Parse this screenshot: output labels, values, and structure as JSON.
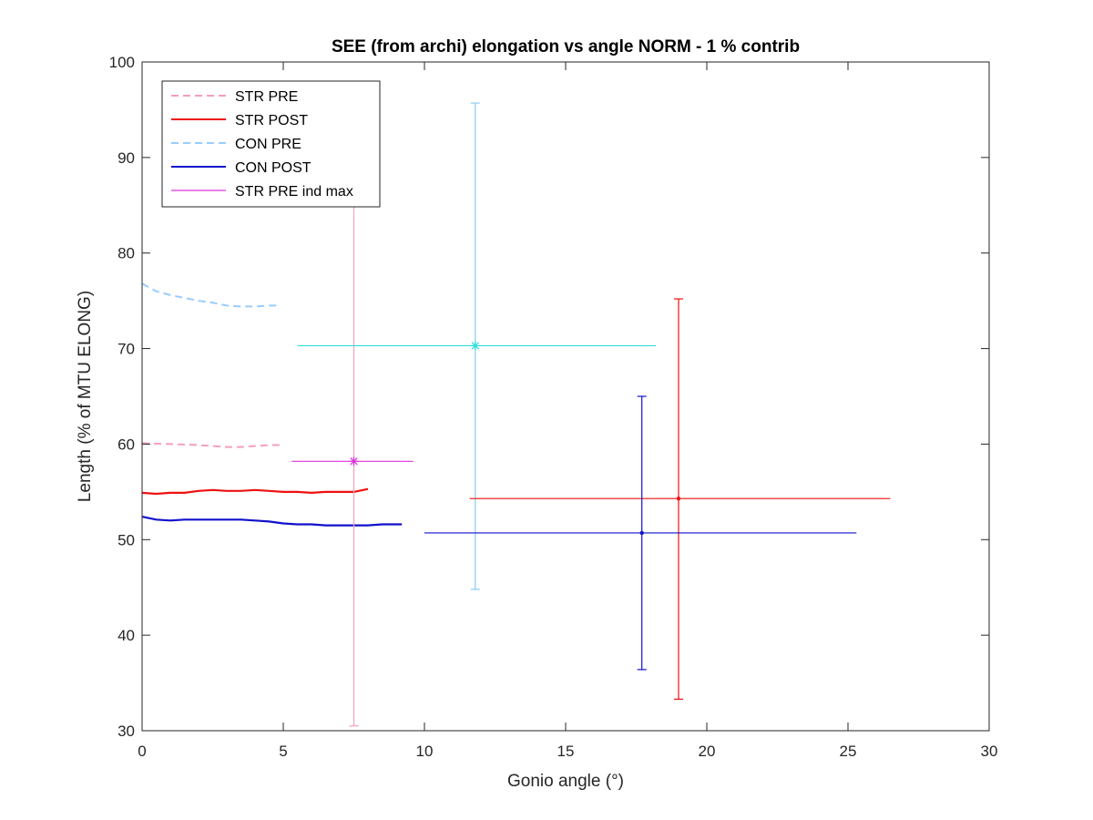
{
  "chart_data": {
    "type": "line",
    "title": "SEE (from archi) elongation vs angle NORM - 1 % contrib",
    "xlabel": "Gonio angle (°)",
    "ylabel": "Length (% of MTU ELONG)",
    "xlim": [
      0,
      30
    ],
    "ylim": [
      30,
      100
    ],
    "xticks": [
      0,
      5,
      10,
      15,
      20,
      25,
      30
    ],
    "yticks": [
      30,
      40,
      50,
      60,
      70,
      80,
      90,
      100
    ],
    "grid": false,
    "legend_position": "top-left",
    "series": [
      {
        "name": "STR PRE",
        "color": "#f4a0b8",
        "style": "dashed",
        "x": [
          0,
          1,
          2,
          3,
          3.5,
          4,
          4.5,
          5
        ],
        "y": [
          60.1,
          60.0,
          59.9,
          59.7,
          59.7,
          59.8,
          59.9,
          59.9
        ]
      },
      {
        "name": "STR POST",
        "color": "#ee1111",
        "style": "solid",
        "x": [
          0,
          0.5,
          1,
          1.5,
          2,
          2.5,
          3,
          3.5,
          4,
          4.5,
          5,
          5.5,
          6,
          6.5,
          7,
          7.5,
          8
        ],
        "y": [
          54.9,
          54.8,
          54.9,
          54.9,
          55.1,
          55.2,
          55.1,
          55.1,
          55.2,
          55.1,
          55.0,
          55.0,
          54.9,
          55.0,
          55.0,
          55.0,
          55.3
        ]
      },
      {
        "name": "CON PRE",
        "color": "#99ccff",
        "style": "dashed",
        "x": [
          0,
          0.5,
          1,
          1.5,
          2,
          2.5,
          3,
          3.5,
          4,
          4.5,
          4.8
        ],
        "y": [
          76.8,
          76.0,
          75.6,
          75.3,
          75.0,
          74.8,
          74.5,
          74.4,
          74.4,
          74.5,
          74.5
        ]
      },
      {
        "name": "CON POST",
        "color": "#1111cc",
        "style": "solid",
        "x": [
          0,
          0.5,
          1,
          1.5,
          2,
          2.5,
          3,
          3.5,
          4,
          4.5,
          5,
          5.5,
          6,
          6.5,
          7,
          7.5,
          8,
          8.5,
          9.2
        ],
        "y": [
          52.4,
          52.1,
          52.0,
          52.1,
          52.1,
          52.1,
          52.1,
          52.1,
          52.0,
          51.9,
          51.7,
          51.6,
          51.6,
          51.5,
          51.5,
          51.5,
          51.5,
          51.6,
          51.6
        ]
      },
      {
        "name": "STR PRE ind max",
        "color": "#dd33dd",
        "style": "solid",
        "x": [],
        "y": []
      }
    ],
    "error_points": [
      {
        "x": 7.5,
        "y": 58.2,
        "xmin": 5.3,
        "xmax": 9.6,
        "ymin": 30.5,
        "ymax": 85.2,
        "marker": "star",
        "hcolor": "#dd33dd",
        "vcolor": "#f4a0b8",
        "mcolor": "#dd33dd"
      },
      {
        "x": 11.8,
        "y": 70.3,
        "xmin": 5.5,
        "xmax": 18.2,
        "ymin": 44.8,
        "ymax": 95.7,
        "marker": "star",
        "hcolor": "#33dddd",
        "vcolor": "#88ccee",
        "mcolor": "#33dddd"
      },
      {
        "x": 19.0,
        "y": 54.3,
        "xmin": 11.6,
        "xmax": 26.5,
        "ymin": 33.3,
        "ymax": 75.2,
        "marker": "dot",
        "hcolor": "#ee1111",
        "vcolor": "#ee1111",
        "mcolor": "#ee1111"
      },
      {
        "x": 17.7,
        "y": 50.7,
        "xmin": 10.0,
        "xmax": 25.3,
        "ymin": 36.4,
        "ymax": 65.0,
        "marker": "dot",
        "hcolor": "#1111cc",
        "vcolor": "#1111cc",
        "mcolor": "#1111cc"
      }
    ]
  }
}
